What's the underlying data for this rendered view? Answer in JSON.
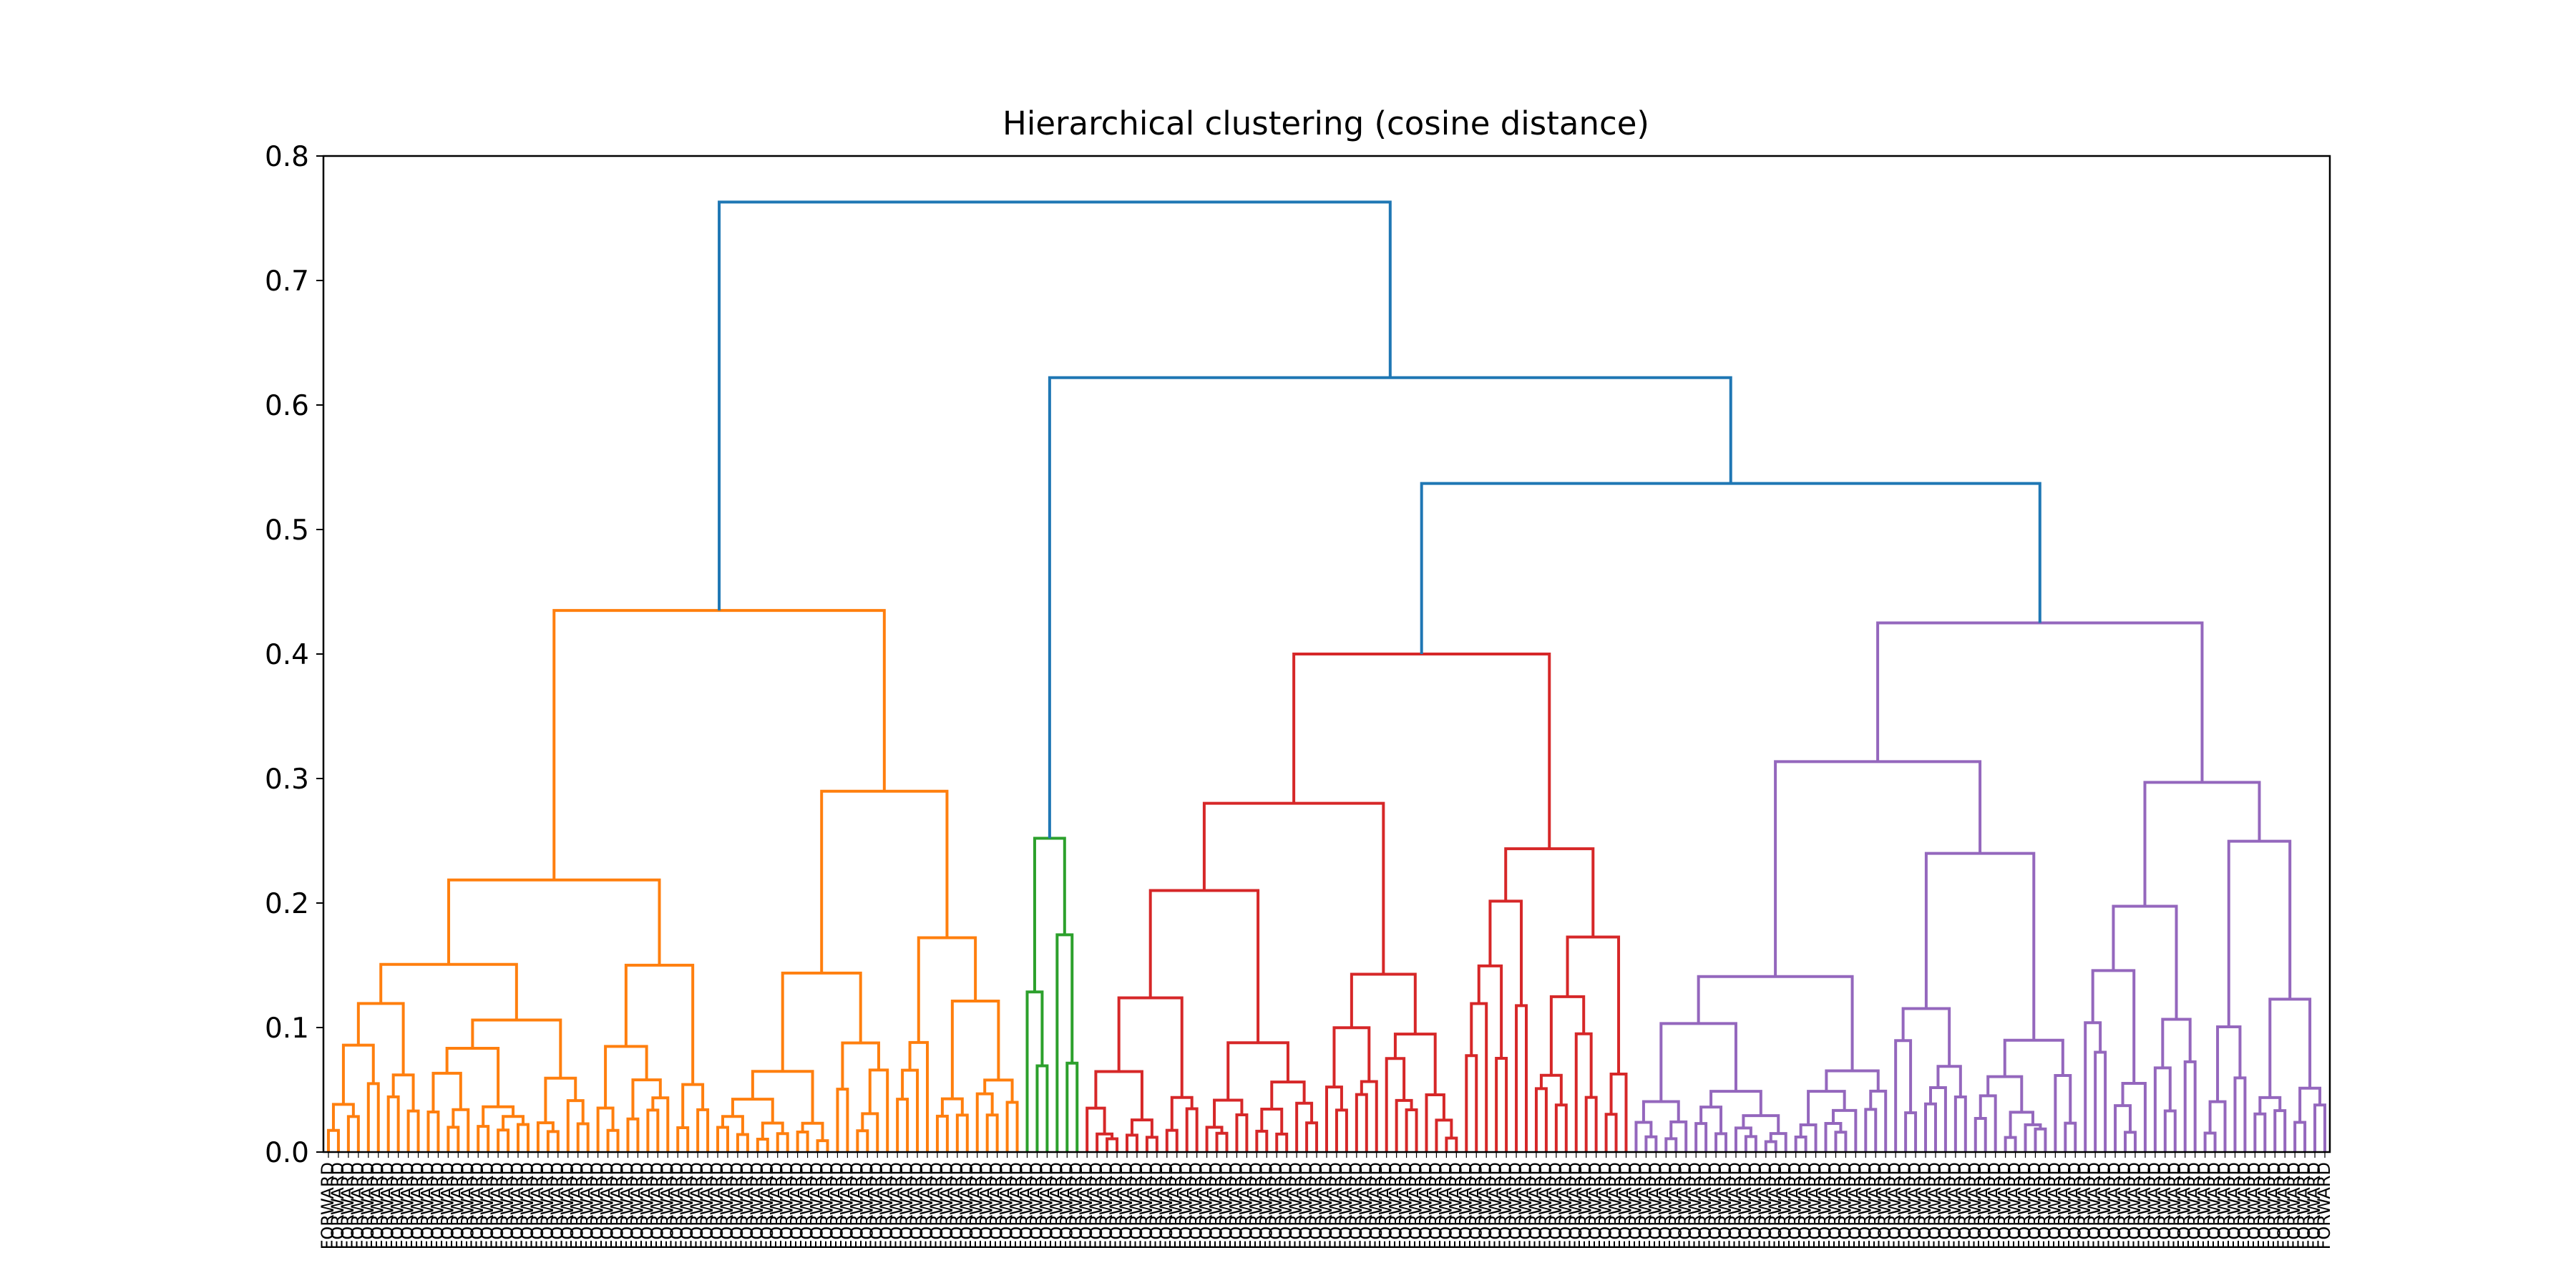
{
  "chart_data": {
    "type": "dendrogram",
    "title": "Hierarchical clustering (cosine distance)",
    "xlabel": "",
    "ylabel": "",
    "ylim": [
      0,
      0.8
    ],
    "y_ticks": [
      "0.0",
      "0.1",
      "0.2",
      "0.3",
      "0.4",
      "0.5",
      "0.6",
      "0.7",
      "0.8"
    ],
    "leaf_label_text": "FORWARD",
    "grid": false,
    "legend": "none",
    "colors": {
      "root": "#1f77b4",
      "cluster_1": "#ff7f0e",
      "cluster_2": "#2ca02c",
      "cluster_3": "#d62728",
      "cluster_4": "#9467bd"
    },
    "clusters": [
      {
        "name": "cluster_1",
        "color": "#ff7f0e",
        "leaf_count": 70,
        "top_merge_distance": 0.435
      },
      {
        "name": "cluster_2",
        "color": "#2ca02c",
        "leaf_count": 6,
        "top_merge_distance": 0.252
      },
      {
        "name": "cluster_3",
        "color": "#d62728",
        "leaf_count": 55,
        "top_merge_distance": 0.4
      },
      {
        "name": "cluster_4",
        "color": "#9467bd",
        "leaf_count": 70,
        "top_merge_distance": 0.425
      }
    ],
    "root_merges": [
      {
        "children": [
          "cluster_3",
          "cluster_4"
        ],
        "distance": 0.537
      },
      {
        "children": [
          "cluster_2",
          "cluster_3+cluster_4"
        ],
        "distance": 0.622
      },
      {
        "children": [
          "cluster_1",
          "rest"
        ],
        "distance": 0.763
      }
    ]
  }
}
